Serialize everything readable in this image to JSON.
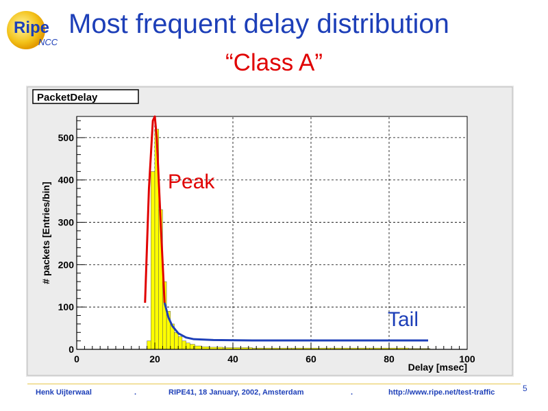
{
  "slide": {
    "logo_main": "Ripe",
    "logo_sub": "NCC",
    "title": "Most frequent delay distribution",
    "subtitle": "“Class A”"
  },
  "chart_data": {
    "type": "bar",
    "histogram_title": "PacketDelay",
    "xlabel": "Delay [msec]",
    "ylabel": "# packets [Entries/bin]",
    "xlim": [
      0,
      100
    ],
    "ylim": [
      0,
      550
    ],
    "xticks": [
      "0",
      "20",
      "40",
      "60",
      "80",
      "100"
    ],
    "yticks": [
      "0",
      "100",
      "200",
      "300",
      "400",
      "500"
    ],
    "grid": true,
    "bins": {
      "x": [
        17.5,
        18.5,
        19.5,
        20.5,
        21.5,
        22.5,
        23.5,
        24.5,
        25.5,
        26.5,
        27.5,
        28.5,
        29.5,
        31,
        33,
        35,
        40,
        50,
        60,
        70,
        80,
        90
      ],
      "y": [
        0,
        20,
        420,
        520,
        330,
        160,
        90,
        60,
        40,
        30,
        20,
        15,
        12,
        8,
        6,
        5,
        4,
        3,
        3,
        3,
        3,
        2
      ]
    },
    "peak_fit": {
      "label": "Peak",
      "color": "#e00000",
      "x": [
        17.5,
        18.5,
        19.5,
        20.0,
        20.5,
        21.5,
        22.5
      ],
      "y": [
        110,
        380,
        540,
        550,
        500,
        300,
        110
      ]
    },
    "tail_fit": {
      "label": "Tail",
      "color": "#1d3fb8",
      "x": [
        22.5,
        23.5,
        24.5,
        26,
        28,
        30,
        35,
        45,
        60,
        80,
        90
      ],
      "y": [
        110,
        75,
        55,
        38,
        28,
        24,
        22,
        21,
        21,
        21,
        21
      ]
    },
    "annotations": [
      "Peak",
      "Tail"
    ]
  },
  "footer": {
    "author": "Henk Uijterwaal",
    "event": "RIPE41, 18 January, 2002, Amsterdam",
    "url": "http://www.ripe.net/test-traffic",
    "separator": ".",
    "page": "5"
  }
}
